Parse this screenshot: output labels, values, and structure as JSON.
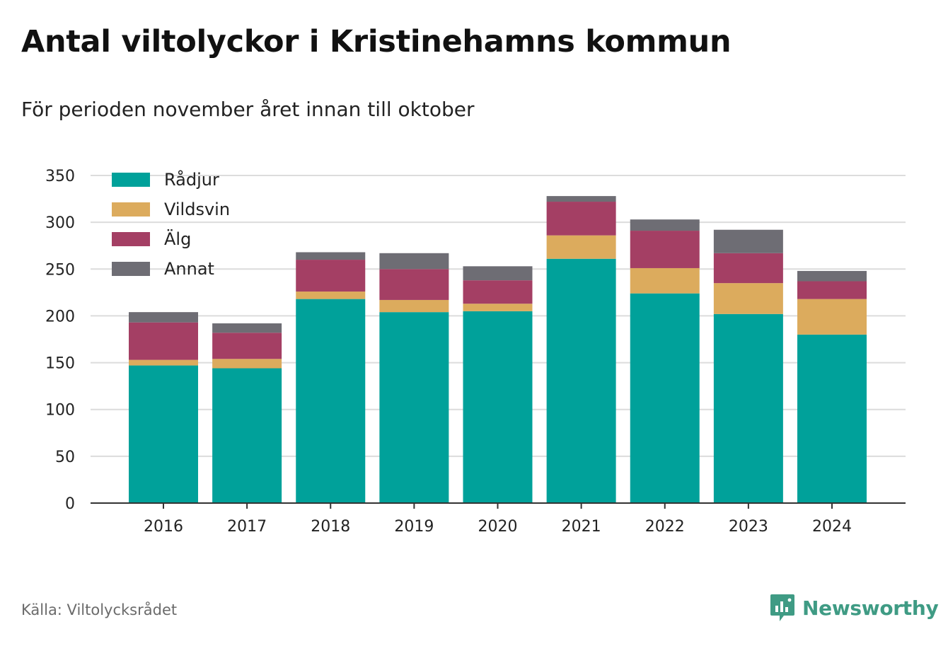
{
  "title": "Antal viltolyckor i Kristinehamns kommun",
  "subtitle": "För perioden november året innan till oktober",
  "source": "Källa: Viltolycksrådet",
  "brand": {
    "name": "Newsworthy",
    "icon": "newsworthy-logo-icon",
    "color": "#3f9b84"
  },
  "chart_data": {
    "type": "bar",
    "stacked": true,
    "categories": [
      "2016",
      "2017",
      "2018",
      "2019",
      "2020",
      "2021",
      "2022",
      "2023",
      "2024"
    ],
    "series": [
      {
        "name": "Rådjur",
        "color": "#00a19a",
        "values": [
          147,
          144,
          218,
          204,
          205,
          261,
          224,
          202,
          180
        ]
      },
      {
        "name": "Vildsvin",
        "color": "#dcab5d",
        "values": [
          6,
          10,
          8,
          13,
          8,
          25,
          27,
          33,
          38
        ]
      },
      {
        "name": "Älg",
        "color": "#a43f64",
        "values": [
          40,
          28,
          34,
          33,
          25,
          36,
          40,
          32,
          19
        ]
      },
      {
        "name": "Annat",
        "color": "#6e6d74",
        "values": [
          11,
          10,
          8,
          17,
          15,
          6,
          12,
          25,
          11
        ]
      }
    ],
    "ylim": [
      0,
      350
    ],
    "yticks": [
      0,
      50,
      100,
      150,
      200,
      250,
      300,
      350
    ],
    "grid": true,
    "legend_position": "top-left",
    "xlabel": "",
    "ylabel": ""
  }
}
